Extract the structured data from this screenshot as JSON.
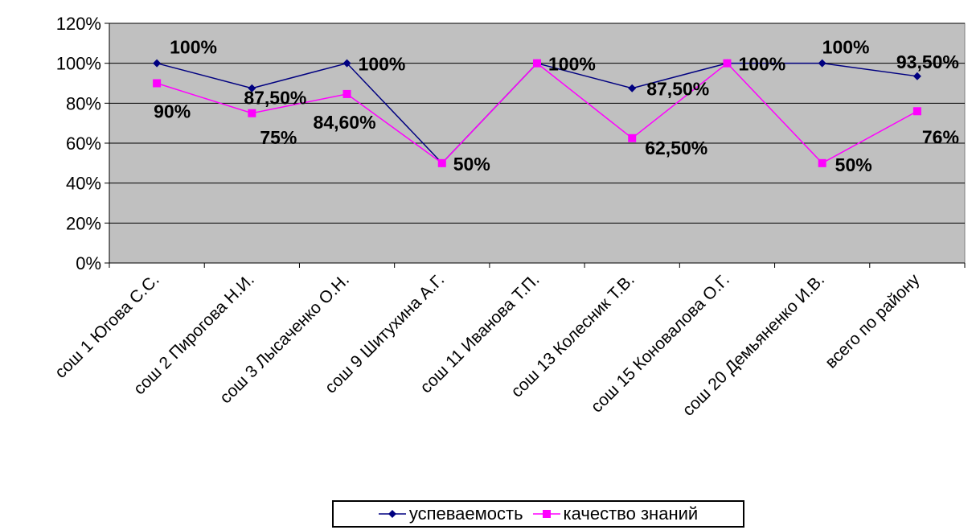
{
  "chart_data": {
    "type": "line",
    "categories": [
      "сош 1 Югова С.С.",
      "сош 2 Пирогова Н.И.",
      "сош 3 Лысаченко О.Н.",
      "сош 9 Шитухина А.Г.",
      "сош 11 Иванова Т.П.",
      "сош 13 Колесник Т.В.",
      "сош 15 Коновалова О.Г.",
      "сош 20 Демьяненко И.В.",
      "всего по району"
    ],
    "series": [
      {
        "name": "успеваемость",
        "color": "#000080",
        "marker": "diamond",
        "values": [
          100,
          87.5,
          100,
          50,
          100,
          87.5,
          100,
          100,
          93.5
        ],
        "labels": [
          "100%",
          "87,50%",
          "100%",
          "50%",
          "100%",
          "87,50%",
          "100%",
          "100%",
          "93,50%"
        ]
      },
      {
        "name": "качество знаний",
        "color": "#ff00ff",
        "marker": "square",
        "values": [
          90,
          75,
          84.6,
          50,
          100,
          62.5,
          100,
          50,
          76
        ],
        "labels": [
          "90%",
          "75%",
          "84,60%",
          "50%",
          "100%",
          "62,50%",
          "100%",
          "50%",
          "76%"
        ]
      }
    ],
    "y_ticks": [
      "0%",
      "20%",
      "40%",
      "60%",
      "80%",
      "100%",
      "120%"
    ],
    "ylim": [
      0,
      120
    ],
    "y_step": 20,
    "grid": true,
    "plot_background": "#c0c0c0",
    "legend_position": "bottom"
  }
}
